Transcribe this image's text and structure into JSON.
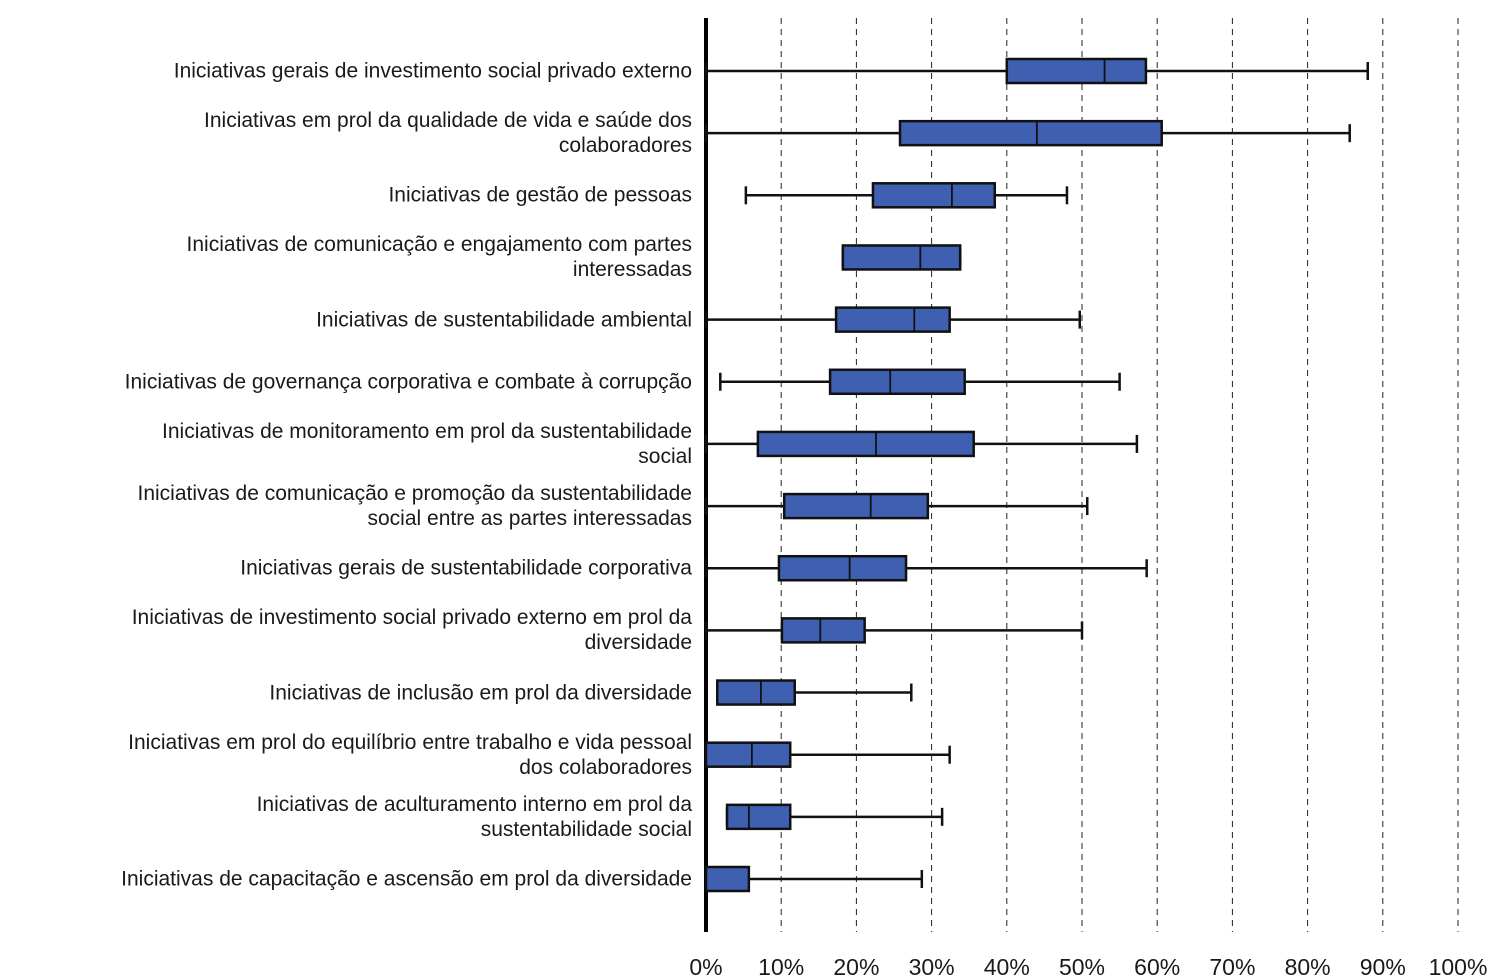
{
  "chart_data": {
    "type": "box",
    "orientation": "horizontal",
    "categories": [
      "Iniciativas gerais de investimento social privado externo",
      "Iniciativas em prol da qualidade de vida e saúde dos\ncolaboradores",
      "Iniciativas de gestão de pessoas",
      "Iniciativas de comunicação e engajamento com partes\ninteressadas",
      "Iniciativas de sustentabilidade ambiental",
      "Iniciativas de governança corporativa e combate à corrupção",
      "Iniciativas de monitoramento em prol da sustentabilidade\nsocial",
      "Iniciativas de comunicação e promoção da sustentabilidade\nsocial entre as partes interessadas",
      "Iniciativas gerais de sustentabilidade corporativa",
      "Iniciativas de investimento social privado externo em prol da\ndiversidade",
      "Iniciativas de inclusão em prol da diversidade",
      "Iniciativas em prol do equilíbrio entre trabalho e vida pessoal\ndos colaboradores",
      "Iniciativas de aculturamento interno em prol da\nsustentabilidade social",
      "Iniciativas de capacitação e ascensão em prol da diversidade"
    ],
    "min": [
      0,
      0,
      5.3,
      18.2,
      0,
      1.9,
      0,
      0,
      0,
      0,
      1.5,
      0,
      2.8,
      0
    ],
    "q1": [
      40,
      25.8,
      22.2,
      18.2,
      17.3,
      16.5,
      6.9,
      10.4,
      9.7,
      10.1,
      1.5,
      0,
      2.8,
      0
    ],
    "median": [
      53,
      44,
      32.7,
      28.5,
      27.7,
      24.5,
      22.6,
      21.9,
      19.1,
      15.2,
      7.3,
      6.1,
      5.7,
      0
    ],
    "q3": [
      58.5,
      60.6,
      38.4,
      33.8,
      32.4,
      34.4,
      35.6,
      29.5,
      26.6,
      21.1,
      11.8,
      11.2,
      11.2,
      5.7
    ],
    "max": [
      88,
      85.6,
      48,
      33.8,
      49.7,
      55,
      57.3,
      50.7,
      58.6,
      50,
      27.3,
      32.4,
      31.4,
      28.7
    ],
    "color": "#3f5fb0",
    "xlim": [
      0,
      100
    ],
    "xticks": [
      {
        "value": 0,
        "label": "0%"
      },
      {
        "value": 10,
        "label": "10%"
      },
      {
        "value": 20,
        "label": "20%"
      },
      {
        "value": 30,
        "label": "30%"
      },
      {
        "value": 40,
        "label": "40%"
      },
      {
        "value": 50,
        "label": "50%"
      },
      {
        "value": 60,
        "label": "60%"
      },
      {
        "value": 70,
        "label": "70%"
      },
      {
        "value": 80,
        "label": "80%"
      },
      {
        "value": 90,
        "label": "90%"
      },
      {
        "value": 100,
        "label": "100%"
      }
    ],
    "grid": true
  }
}
